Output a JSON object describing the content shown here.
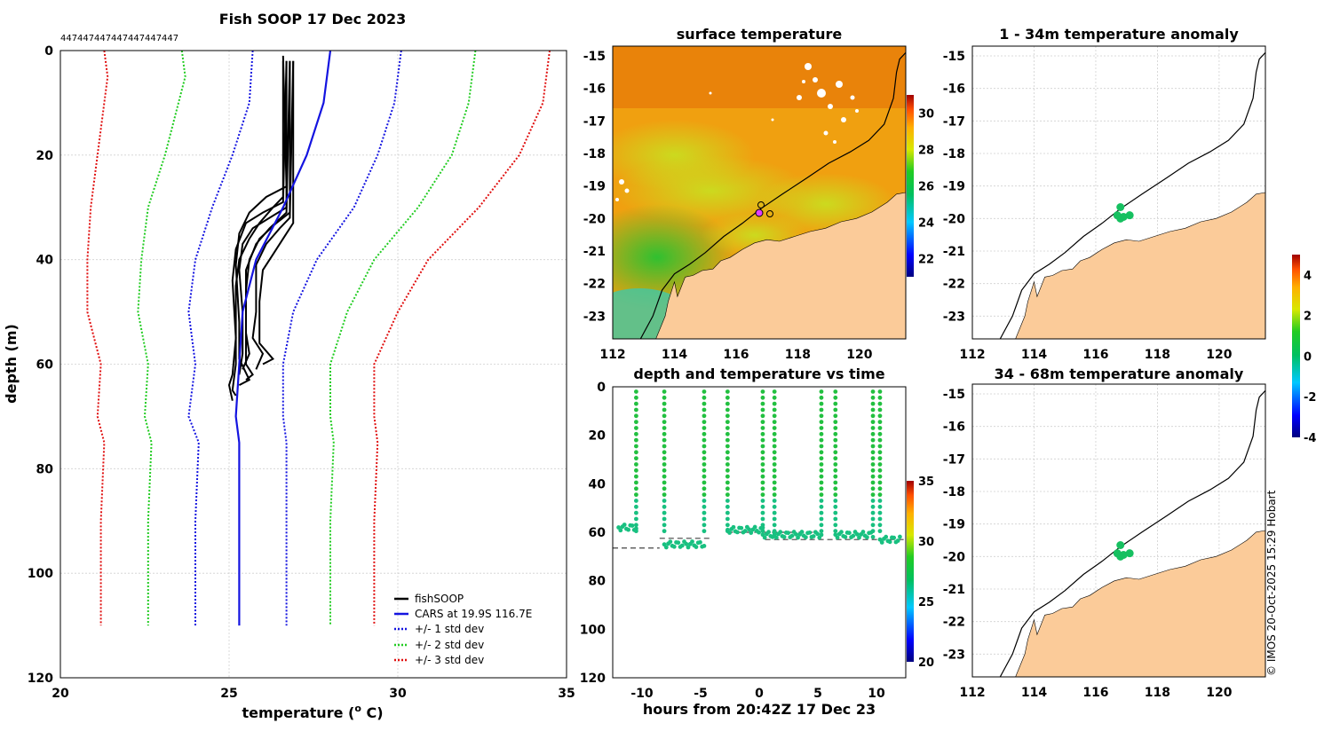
{
  "page": {
    "credit": "© IMOS 20-Oct-2025 15:29 Hobart"
  },
  "colors": {
    "fishsoop": "#000000",
    "cars": "#1414e0",
    "std1": "#1414e0",
    "std2": "#22cc22",
    "std3": "#e01010",
    "land": "#fbcb99",
    "sea_bg": "#f2a10a"
  },
  "chart_data": [
    {
      "id": "profile",
      "type": "line",
      "title": "Fish SOOP 17 Dec 2023",
      "xlabel": "temperature (°C)",
      "xlabel_prefix": "temperature (",
      "xlabel_sup": "o",
      "xlabel_suffix": " C)",
      "ylabel": "depth (m)",
      "xlim": [
        20,
        35
      ],
      "ylim": [
        0,
        120
      ],
      "xticks": [
        "20",
        "25",
        "30",
        "35"
      ],
      "yticks": [
        "0",
        "20",
        "40",
        "60",
        "80",
        "100",
        "120"
      ],
      "top_labels": [
        "447",
        "447",
        "447",
        "447",
        "447",
        "447",
        "447"
      ],
      "legend": [
        "fishSOOP",
        "CARS at 19.9S 116.7E",
        "+/- 1 std dev",
        "+/- 2 std dev",
        "+/- 3 std dev"
      ],
      "cars": [
        [
          28,
          0
        ],
        [
          27.8,
          10
        ],
        [
          27.3,
          20
        ],
        [
          26.6,
          30
        ],
        [
          25.8,
          40
        ],
        [
          25.4,
          50
        ],
        [
          25.3,
          60
        ],
        [
          25.2,
          70
        ],
        [
          25.3,
          75
        ],
        [
          25.3,
          90
        ],
        [
          25.3,
          110
        ]
      ],
      "std_lines": [
        {
          "name": "-3 std",
          "level": 3,
          "pts": [
            [
              21.3,
              0
            ],
            [
              21.4,
              5
            ],
            [
              21.1,
              20
            ],
            [
              20.9,
              30
            ],
            [
              20.8,
              40
            ],
            [
              20.8,
              50
            ],
            [
              21.2,
              60
            ],
            [
              21.1,
              70
            ],
            [
              21.3,
              75
            ],
            [
              21.2,
              90
            ],
            [
              21.2,
              110
            ]
          ]
        },
        {
          "name": "-2 std",
          "level": 2,
          "pts": [
            [
              23.6,
              0
            ],
            [
              23.7,
              5
            ],
            [
              23.1,
              20
            ],
            [
              22.6,
              30
            ],
            [
              22.4,
              40
            ],
            [
              22.3,
              50
            ],
            [
              22.6,
              60
            ],
            [
              22.5,
              70
            ],
            [
              22.7,
              75
            ],
            [
              22.6,
              90
            ],
            [
              22.6,
              110
            ]
          ]
        },
        {
          "name": "-1 std",
          "level": 1,
          "pts": [
            [
              25.7,
              0
            ],
            [
              25.6,
              10
            ],
            [
              25.1,
              20
            ],
            [
              24.5,
              30
            ],
            [
              24.0,
              40
            ],
            [
              23.8,
              50
            ],
            [
              24.0,
              60
            ],
            [
              23.8,
              70
            ],
            [
              24.1,
              75
            ],
            [
              24.0,
              90
            ],
            [
              24.0,
              110
            ]
          ]
        },
        {
          "name": "+1 std",
          "level": 1,
          "pts": [
            [
              30.1,
              0
            ],
            [
              29.9,
              10
            ],
            [
              29.4,
              20
            ],
            [
              28.7,
              30
            ],
            [
              27.6,
              40
            ],
            [
              26.9,
              50
            ],
            [
              26.6,
              60
            ],
            [
              26.6,
              70
            ],
            [
              26.7,
              75
            ],
            [
              26.7,
              90
            ],
            [
              26.7,
              110
            ]
          ]
        },
        {
          "name": "+2 std",
          "level": 2,
          "pts": [
            [
              32.3,
              0
            ],
            [
              32.1,
              10
            ],
            [
              31.6,
              20
            ],
            [
              30.6,
              30
            ],
            [
              29.3,
              40
            ],
            [
              28.5,
              50
            ],
            [
              28.0,
              60
            ],
            [
              28.0,
              70
            ],
            [
              28.1,
              75
            ],
            [
              28.0,
              90
            ],
            [
              28.0,
              110
            ]
          ]
        },
        {
          "name": "+3 std",
          "level": 3,
          "pts": [
            [
              34.5,
              0
            ],
            [
              34.3,
              10
            ],
            [
              33.6,
              20
            ],
            [
              32.4,
              30
            ],
            [
              30.9,
              40
            ],
            [
              30.0,
              50
            ],
            [
              29.3,
              60
            ],
            [
              29.3,
              70
            ],
            [
              29.4,
              75
            ],
            [
              29.3,
              90
            ],
            [
              29.3,
              110
            ]
          ]
        }
      ],
      "fishsoop": [
        [
          [
            26.6,
            2
          ],
          [
            26.6,
            28
          ],
          [
            26.3,
            30
          ],
          [
            25.9,
            33
          ],
          [
            25.6,
            36
          ],
          [
            25.3,
            40
          ],
          [
            25.2,
            45
          ],
          [
            25.2,
            55
          ],
          [
            25.2,
            60
          ],
          [
            25.1,
            65
          ],
          [
            25.2,
            66
          ]
        ],
        [
          [
            26.7,
            2
          ],
          [
            26.7,
            30
          ],
          [
            26.2,
            32
          ],
          [
            25.7,
            34
          ],
          [
            25.4,
            37
          ],
          [
            25.3,
            42
          ],
          [
            25.4,
            50
          ],
          [
            25.4,
            58
          ],
          [
            25.3,
            62
          ]
        ],
        [
          [
            26.8,
            2
          ],
          [
            26.8,
            31
          ],
          [
            26.4,
            33
          ],
          [
            25.9,
            36
          ],
          [
            25.6,
            40
          ],
          [
            25.5,
            46
          ],
          [
            25.5,
            54
          ],
          [
            25.6,
            58
          ],
          [
            25.4,
            61
          ]
        ],
        [
          [
            26.9,
            2
          ],
          [
            26.8,
            32
          ],
          [
            26.5,
            34
          ],
          [
            26.1,
            37
          ],
          [
            25.8,
            41
          ],
          [
            25.8,
            50
          ],
          [
            25.7,
            55
          ],
          [
            26.0,
            58
          ],
          [
            25.8,
            61
          ]
        ],
        [
          [
            26.7,
            2
          ],
          [
            26.6,
            29
          ],
          [
            26.0,
            31
          ],
          [
            25.5,
            33
          ],
          [
            25.2,
            38
          ],
          [
            25.1,
            44
          ],
          [
            25.2,
            55
          ],
          [
            25.1,
            62
          ],
          [
            25.0,
            64
          ],
          [
            25.1,
            67
          ]
        ],
        [
          [
            26.9,
            2
          ],
          [
            26.9,
            33
          ],
          [
            26.6,
            36
          ],
          [
            26.3,
            39
          ],
          [
            26.0,
            42
          ],
          [
            25.9,
            48
          ],
          [
            25.9,
            56
          ],
          [
            26.3,
            59
          ],
          [
            26.0,
            60
          ]
        ],
        [
          [
            26.6,
            1
          ],
          [
            26.7,
            26
          ],
          [
            26.1,
            28
          ],
          [
            25.6,
            31
          ],
          [
            25.3,
            35
          ],
          [
            25.2,
            41
          ],
          [
            25.3,
            52
          ],
          [
            25.3,
            59
          ],
          [
            25.6,
            63
          ],
          [
            25.3,
            64
          ]
        ],
        [
          [
            26.8,
            2
          ],
          [
            26.7,
            31
          ],
          [
            26.2,
            34
          ],
          [
            25.8,
            37
          ],
          [
            25.5,
            42
          ],
          [
            25.5,
            52
          ],
          [
            25.5,
            60
          ],
          [
            25.7,
            62
          ],
          [
            25.5,
            63
          ]
        ]
      ]
    },
    {
      "id": "timeseries",
      "type": "scatter",
      "title": "depth and temperature vs time",
      "xlabel": "hours from 20:42Z 17 Dec 23",
      "xlim": [
        -12.5,
        12.5
      ],
      "ylim": [
        0,
        120
      ],
      "xticks": [
        "-10",
        "-5",
        "0",
        "5",
        "10"
      ],
      "yticks": [
        "0",
        "20",
        "40",
        "60",
        "80",
        "100",
        "120"
      ],
      "colorbar": {
        "range": [
          20,
          35
        ],
        "ticks": [
          "20",
          "25",
          "30",
          "35"
        ]
      },
      "dive_times": [
        -10.5,
        -8.1,
        -4.7,
        -2.7,
        0.3,
        1.3,
        5.3,
        6.5,
        9.7,
        10.3
      ],
      "bottom_segments": [
        {
          "from": -12.0,
          "to": -10.5,
          "depth": 58
        },
        {
          "from": -8.1,
          "to": -4.7,
          "depth": 65
        },
        {
          "from": -2.7,
          "to": 0.3,
          "depth": 59
        },
        {
          "from": 0.3,
          "to": 1.3,
          "depth": 61
        },
        {
          "from": 1.3,
          "to": 5.3,
          "depth": 61
        },
        {
          "from": 6.5,
          "to": 9.7,
          "depth": 61
        },
        {
          "from": 10.3,
          "to": 12.0,
          "depth": 63
        }
      ],
      "dashed_lines": [
        {
          "from": -12.5,
          "to": -8.5,
          "depth": 66.5
        },
        {
          "from": -8.5,
          "to": -4.0,
          "depth": 62.5
        },
        {
          "from": -2.7,
          "to": 5.0,
          "depth": 60.0
        },
        {
          "from": 0.5,
          "to": 12.5,
          "depth": 63.0
        }
      ]
    },
    {
      "id": "sst_map",
      "type": "heatmap",
      "title": "surface temperature",
      "xlim": [
        112,
        121.5
      ],
      "ylim": [
        -23.7,
        -14.7
      ],
      "xticks": [
        "112",
        "114",
        "116",
        "118",
        "120"
      ],
      "yticks": [
        "-15",
        "-16",
        "-17",
        "-18",
        "-19",
        "-20",
        "-21",
        "-22",
        "-23"
      ],
      "colorbar": {
        "range": [
          21,
          31
        ],
        "ticks": [
          "22",
          "24",
          "26",
          "28",
          "30"
        ]
      }
    },
    {
      "id": "anom_map_1",
      "type": "scatter",
      "title": "1 - 34m temperature anomaly",
      "xlim": [
        112,
        121.5
      ],
      "ylim": [
        -23.7,
        -14.7
      ],
      "xticks": [
        "112",
        "114",
        "116",
        "118",
        "120"
      ],
      "yticks": [
        "-15",
        "-16",
        "-17",
        "-18",
        "-19",
        "-20",
        "-21",
        "-22",
        "-23"
      ],
      "points": [
        [
          116.8,
          -19.65
        ],
        [
          116.7,
          -19.9
        ],
        [
          116.9,
          -19.95
        ],
        [
          117.1,
          -19.9
        ],
        [
          116.8,
          -20.0
        ]
      ]
    },
    {
      "id": "anom_map_2",
      "type": "scatter",
      "title": "34 - 68m temperature anomaly",
      "xlim": [
        112,
        121.5
      ],
      "ylim": [
        -23.7,
        -14.7
      ],
      "xticks": [
        "112",
        "114",
        "116",
        "118",
        "120"
      ],
      "yticks": [
        "-15",
        "-16",
        "-17",
        "-18",
        "-19",
        "-20",
        "-21",
        "-22",
        "-23"
      ],
      "points": [
        [
          116.8,
          -19.65
        ],
        [
          116.7,
          -19.9
        ],
        [
          116.9,
          -19.95
        ],
        [
          117.1,
          -19.9
        ],
        [
          116.8,
          -20.0
        ]
      ]
    },
    {
      "id": "anom_colorbar",
      "type": "heatmap",
      "range": [
        -4,
        5
      ],
      "ticks": [
        "4",
        "2",
        "0",
        "-2",
        "-4"
      ]
    }
  ]
}
